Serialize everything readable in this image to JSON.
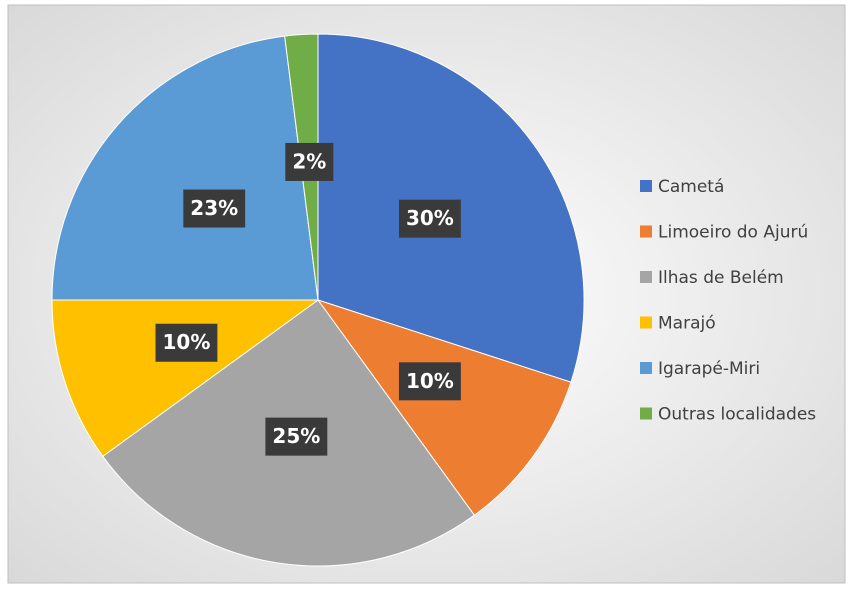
{
  "chart_data": {
    "type": "pie",
    "categories": [
      "Cametá",
      "Limoeiro do Ajurú",
      "Ilhas de Belém",
      "Marajó",
      "Igarapé-Miri",
      "Outras localidades"
    ],
    "values": [
      30,
      10,
      25,
      10,
      23,
      2
    ],
    "value_labels": [
      "30%",
      "10%",
      "25%",
      "10%",
      "23%",
      "2%"
    ],
    "colors": [
      "#4472c4",
      "#ed7d31",
      "#a5a5a5",
      "#ffc000",
      "#5b9bd5",
      "#70ad47"
    ],
    "legend": "right"
  }
}
